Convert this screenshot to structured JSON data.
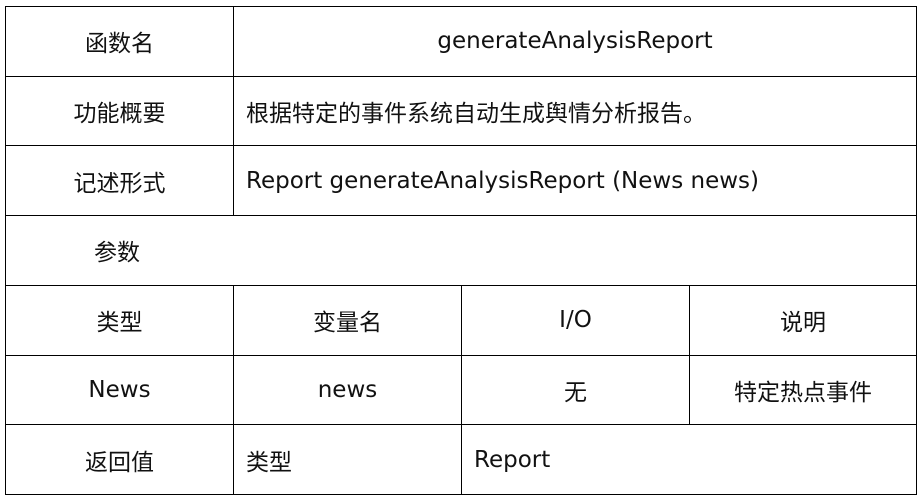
{
  "rows": {
    "function_name": {
      "label": "函数名",
      "value": "generateAnalysisReport"
    },
    "summary": {
      "label": "功能概要",
      "value": "根据特定的事件系统自动生成舆情分析报告。"
    },
    "signature": {
      "label": "记述形式",
      "value": "Report generateAnalysisReport (News news)"
    },
    "params_header": {
      "label": "参数"
    },
    "param_columns": [
      "类型",
      "变量名",
      "I/O",
      "说明"
    ],
    "param_rows": [
      [
        "News",
        "news",
        "无",
        "特定热点事件"
      ]
    ],
    "return": {
      "label": "返回值",
      "type_label": "类型",
      "type_value": "Report"
    }
  }
}
